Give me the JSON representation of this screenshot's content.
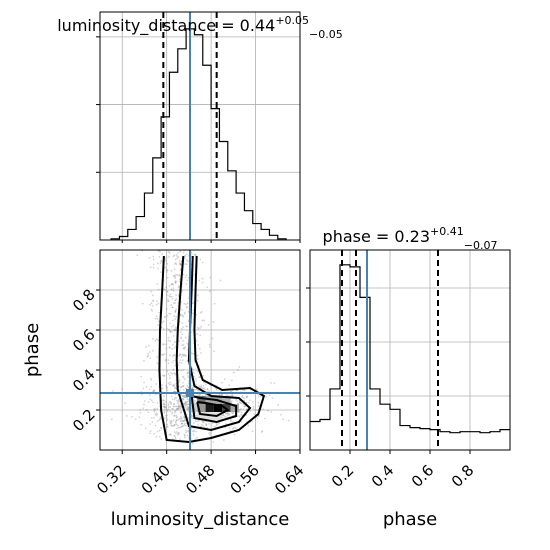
{
  "chart_data": {
    "type": "corner",
    "parameters": [
      "luminosity_distance",
      "phase"
    ],
    "truth": {
      "luminosity_distance": 0.442,
      "phase": 0.285
    },
    "titles": [
      {
        "base": "luminosity_distance = 0.44",
        "plus": "+0.05",
        "minus": "−0.05"
      },
      {
        "base": "phase = 0.23",
        "plus": "+0.41",
        "minus": "−0.07"
      }
    ],
    "luminosity_distance_hist": {
      "xlim": [
        0.28,
        0.64
      ],
      "xticks": [
        "0.32",
        "0.40",
        "0.48",
        "0.56",
        "0.64"
      ],
      "xtick_values": [
        0.32,
        0.4,
        0.48,
        0.56,
        0.64
      ],
      "quantiles": [
        0.394,
        0.442,
        0.49
      ],
      "bin_edges": [
        0.3,
        0.315,
        0.33,
        0.345,
        0.36,
        0.375,
        0.39,
        0.405,
        0.42,
        0.435,
        0.45,
        0.465,
        0.48,
        0.495,
        0.51,
        0.525,
        0.54,
        0.555,
        0.57,
        0.585,
        0.6,
        0.615
      ],
      "counts": [
        1,
        3,
        9,
        20,
        40,
        70,
        105,
        143,
        163,
        180,
        175,
        149,
        112,
        84,
        59,
        40,
        25,
        14,
        9,
        4,
        1
      ]
    },
    "phase_hist": {
      "xlim": [
        0.0,
        1.0
      ],
      "xticks": [
        "0.2",
        "0.4",
        "0.6",
        "0.8"
      ],
      "xtick_values": [
        0.2,
        0.4,
        0.6,
        0.8
      ],
      "xlabel": "phase",
      "quantiles": [
        0.16,
        0.23,
        0.64
      ],
      "bin_edges": [
        0.0,
        0.05,
        0.1,
        0.15,
        0.2,
        0.25,
        0.3,
        0.35,
        0.4,
        0.45,
        0.5,
        0.55,
        0.6,
        0.65,
        0.7,
        0.75,
        0.8,
        0.85,
        0.9,
        0.95,
        1.0
      ],
      "counts": [
        28,
        30,
        60,
        182,
        180,
        150,
        60,
        45,
        40,
        24,
        22,
        21,
        20,
        18,
        17,
        18,
        18,
        17,
        18,
        20
      ]
    },
    "joint": {
      "xlabel": "luminosity_distance",
      "ylabel": "phase",
      "xlim": [
        0.28,
        0.64
      ],
      "ylim": [
        0.0,
        1.0
      ],
      "xticks": [
        "0.32",
        "0.40",
        "0.48",
        "0.56",
        "0.64"
      ],
      "xtick_values": [
        0.32,
        0.4,
        0.48,
        0.56,
        0.64
      ],
      "yticks": [
        "0.2",
        "0.4",
        "0.6",
        "0.8"
      ],
      "ytick_values": [
        0.2,
        0.4,
        0.6,
        0.8
      ],
      "dense_cells": [
        {
          "x": 0.455,
          "y": 0.23,
          "w": 0.015,
          "h": 0.04,
          "shade": 0.55
        },
        {
          "x": 0.47,
          "y": 0.19,
          "w": 0.015,
          "h": 0.04,
          "shade": 0.9
        },
        {
          "x": 0.485,
          "y": 0.19,
          "w": 0.015,
          "h": 0.04,
          "shade": 1.0
        },
        {
          "x": 0.5,
          "y": 0.19,
          "w": 0.015,
          "h": 0.04,
          "shade": 0.75
        },
        {
          "x": 0.455,
          "y": 0.19,
          "w": 0.015,
          "h": 0.04,
          "shade": 0.4
        },
        {
          "x": 0.47,
          "y": 0.23,
          "w": 0.015,
          "h": 0.04,
          "shade": 0.35
        },
        {
          "x": 0.485,
          "y": 0.23,
          "w": 0.015,
          "h": 0.04,
          "shade": 0.35
        },
        {
          "x": 0.5,
          "y": 0.23,
          "w": 0.015,
          "h": 0.04,
          "shade": 0.3
        },
        {
          "x": 0.515,
          "y": 0.19,
          "w": 0.015,
          "h": 0.04,
          "shade": 0.35
        },
        {
          "x": 0.44,
          "y": 0.19,
          "w": 0.015,
          "h": 0.04,
          "shade": 0.2
        },
        {
          "x": 0.455,
          "y": 0.15,
          "w": 0.045,
          "h": 0.04,
          "shade": 0.12
        }
      ],
      "contours": [
        [
          [
            0.395,
            0.97
          ],
          [
            0.392,
            0.8
          ],
          [
            0.388,
            0.6
          ],
          [
            0.387,
            0.4
          ],
          [
            0.39,
            0.2
          ],
          [
            0.4,
            0.05
          ],
          [
            0.44,
            0.04
          ],
          [
            0.48,
            0.06
          ],
          [
            0.53,
            0.1
          ],
          [
            0.565,
            0.18
          ],
          [
            0.575,
            0.27
          ],
          [
            0.55,
            0.31
          ],
          [
            0.5,
            0.3
          ],
          [
            0.465,
            0.35
          ],
          [
            0.452,
            0.45
          ],
          [
            0.45,
            0.6
          ],
          [
            0.452,
            0.8
          ],
          [
            0.454,
            0.97
          ]
        ],
        [
          [
            0.43,
            0.97
          ],
          [
            0.425,
            0.8
          ],
          [
            0.42,
            0.6
          ],
          [
            0.418,
            0.45
          ],
          [
            0.42,
            0.3
          ],
          [
            0.44,
            0.12
          ],
          [
            0.48,
            0.1
          ],
          [
            0.53,
            0.14
          ],
          [
            0.55,
            0.21
          ],
          [
            0.53,
            0.26
          ],
          [
            0.48,
            0.27
          ],
          [
            0.45,
            0.32
          ],
          [
            0.44,
            0.45
          ],
          [
            0.442,
            0.6
          ],
          [
            0.445,
            0.8
          ],
          [
            0.447,
            0.97
          ]
        ],
        [
          [
            0.445,
            0.27
          ],
          [
            0.45,
            0.16
          ],
          [
            0.49,
            0.14
          ],
          [
            0.525,
            0.17
          ],
          [
            0.525,
            0.22
          ],
          [
            0.49,
            0.25
          ],
          [
            0.46,
            0.26
          ],
          [
            0.445,
            0.27
          ]
        ],
        [
          [
            0.455,
            0.24
          ],
          [
            0.46,
            0.18
          ],
          [
            0.49,
            0.17
          ],
          [
            0.51,
            0.2
          ],
          [
            0.5,
            0.22
          ],
          [
            0.47,
            0.235
          ],
          [
            0.455,
            0.24
          ]
        ]
      ]
    }
  },
  "colors": {
    "truth": "#4682b4",
    "grid": "#b0b0b0",
    "scatter": "#888888"
  }
}
